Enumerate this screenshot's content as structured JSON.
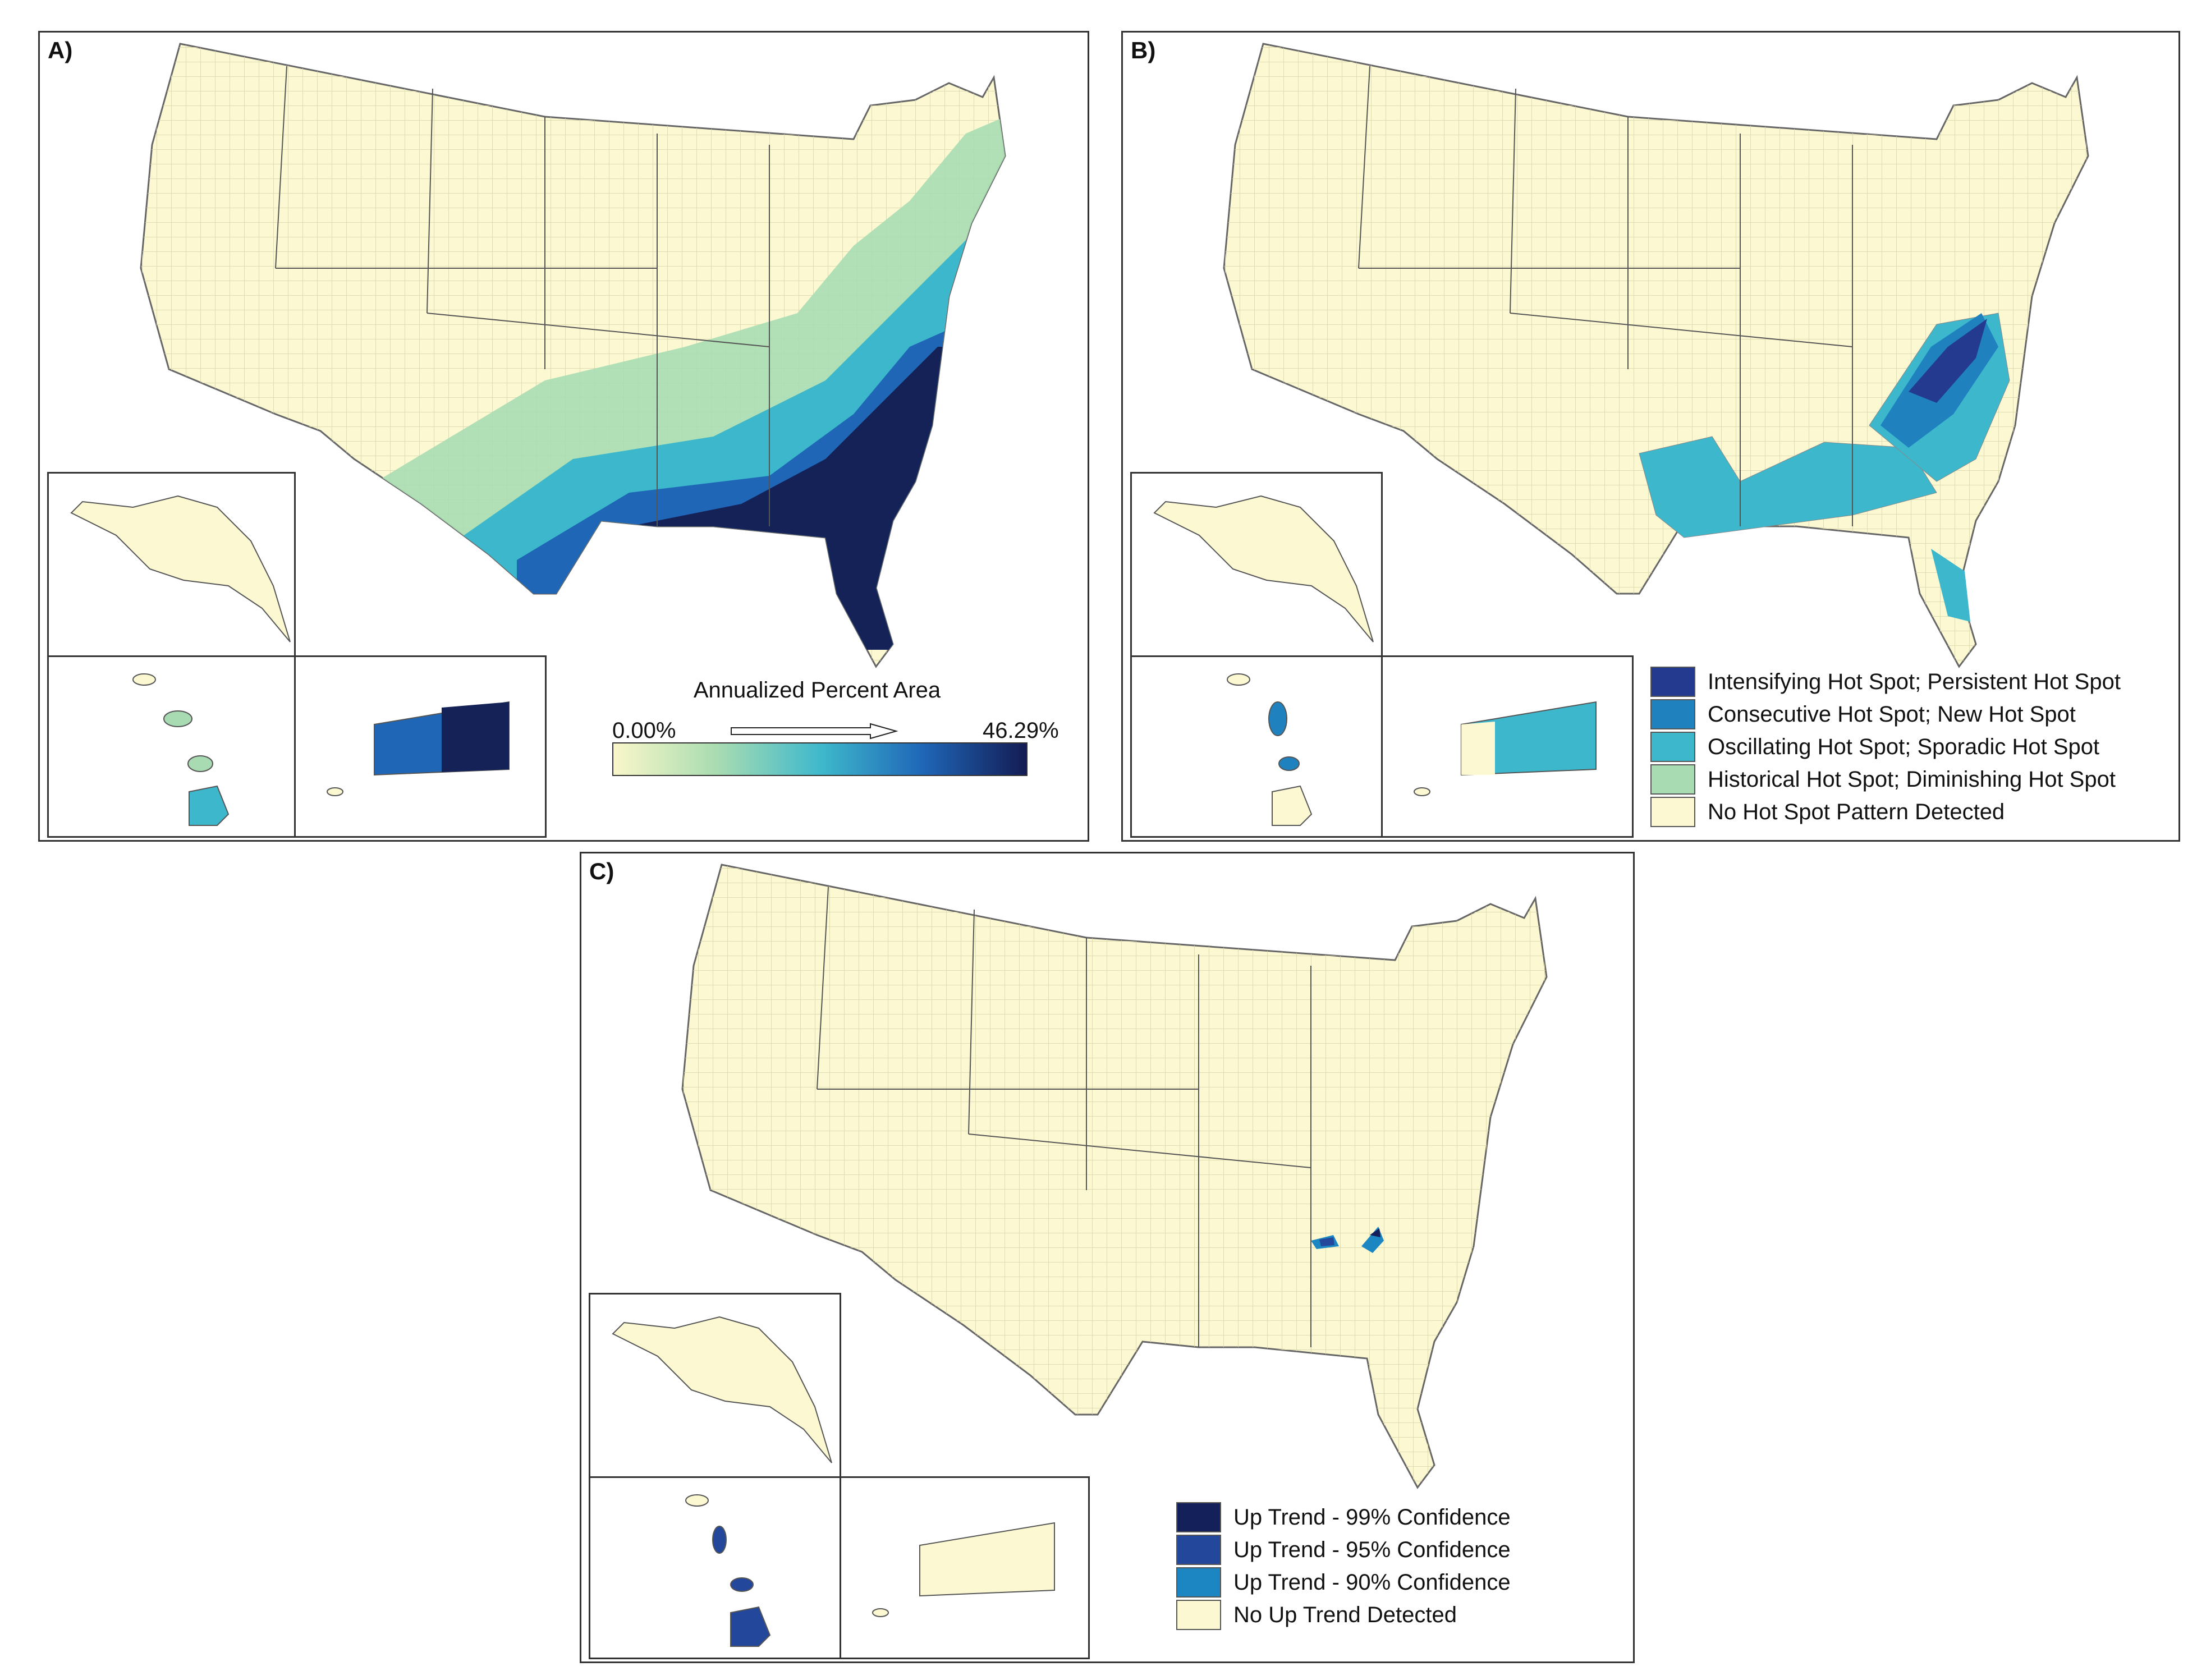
{
  "colors": {
    "land": "#fbf8d2",
    "border": "#777777",
    "county": "#d8d3a8",
    "historical": "#a8dbb2",
    "oscillating": "#3cb7cc",
    "consecutive": "#1f82bf",
    "intensifying": "#243a8f",
    "deep": "#152258",
    "trend99": "#142059",
    "trend95": "#23479b",
    "trend90": "#1b86c2"
  },
  "panels": {
    "a": {
      "label": "A)",
      "colorbar": {
        "title": "Annualized Percent Area",
        "min": "0.00%",
        "max": "46.29%",
        "min_value": 0.0,
        "max_value": 46.29,
        "stops": [
          "#f9f7c9",
          "#a9dcb1",
          "#3fb9cc",
          "#1f66b7",
          "#141c54"
        ]
      }
    },
    "b": {
      "label": "B)",
      "legend": [
        {
          "label": "Intensifying Hot Spot; Persistent Hot Spot",
          "color": "#243a8f"
        },
        {
          "label": "Consecutive Hot Spot; New Hot Spot",
          "color": "#1f82bf"
        },
        {
          "label": "Oscillating Hot Spot; Sporadic Hot Spot",
          "color": "#3cb7cc"
        },
        {
          "label": "Historical Hot Spot; Diminishing Hot Spot",
          "color": "#a8dbb2"
        },
        {
          "label": "No Hot Spot Pattern Detected",
          "color": "#fbf8d2"
        }
      ]
    },
    "c": {
      "label": "C)",
      "legend": [
        {
          "label": "Up Trend - 99% Confidence",
          "color": "#142059"
        },
        {
          "label": "Up Trend - 95% Confidence",
          "color": "#23479b"
        },
        {
          "label": "Up Trend - 90% Confidence",
          "color": "#1b86c2"
        },
        {
          "label": "No Up Trend Detected",
          "color": "#fbf8d2"
        }
      ]
    }
  }
}
